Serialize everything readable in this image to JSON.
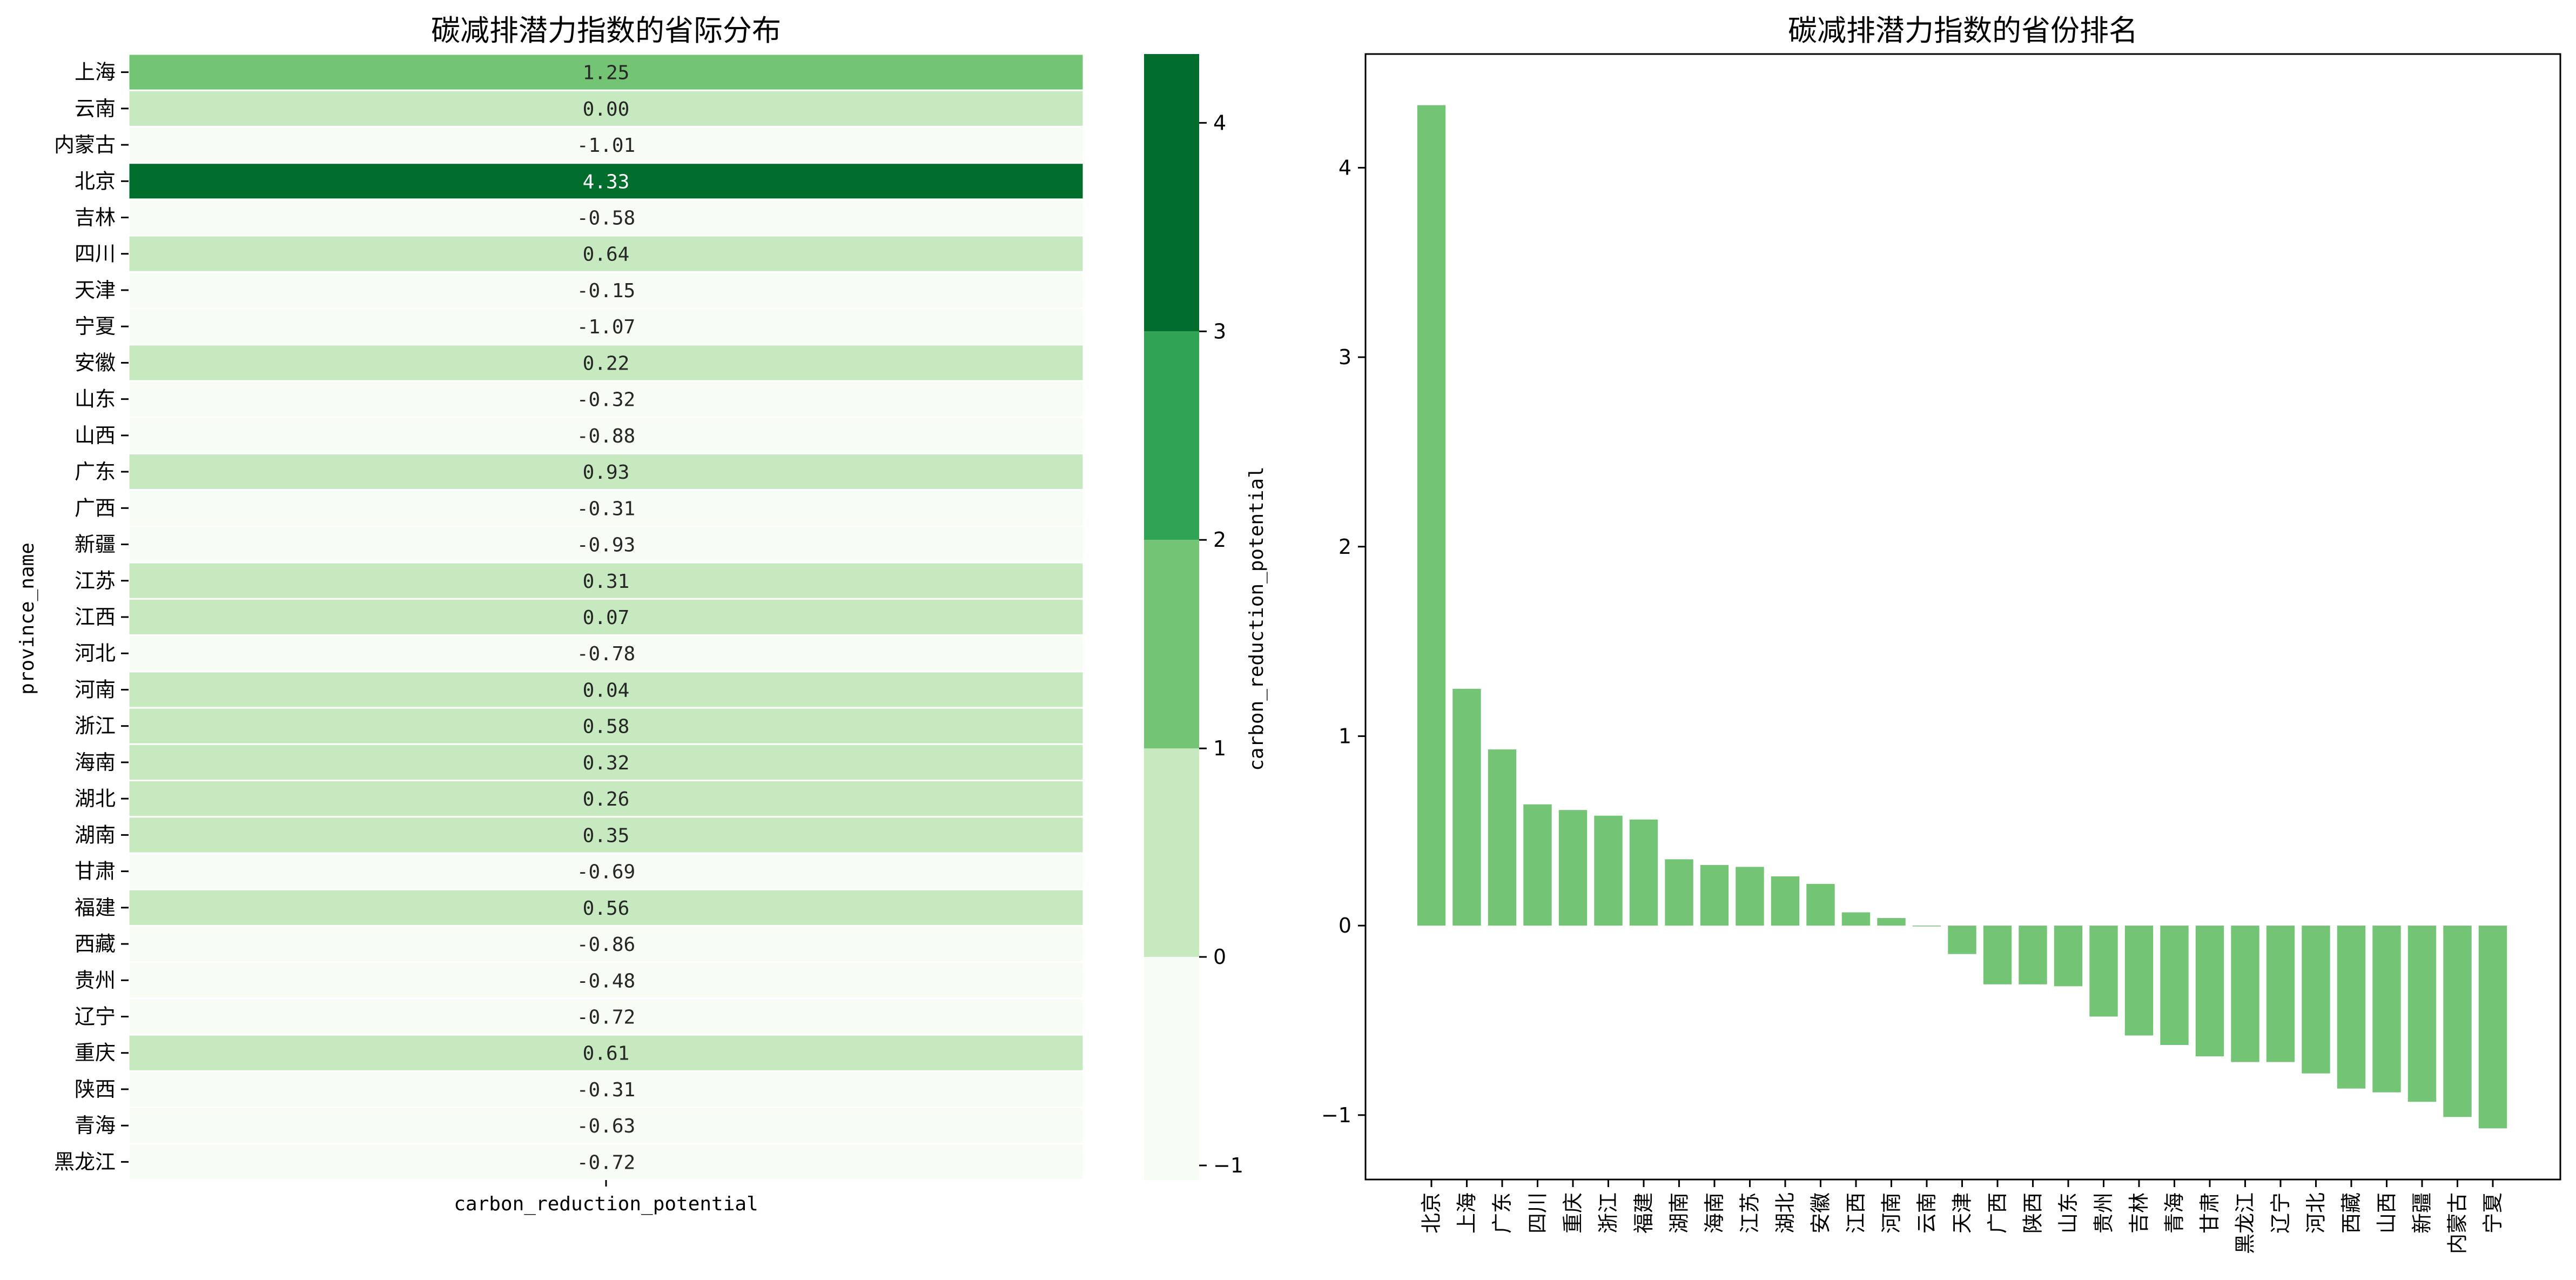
{
  "colors": {
    "bin_low": "#f7fcf5",
    "bin_0_1": "#c7e9c0",
    "bin_1_2": "#74c476",
    "bin_2_3": "#31a354",
    "bin_3_max": "#006d2c",
    "bar": "#74c476",
    "text_dark": "#262626",
    "text_light": "#ffffff"
  },
  "chart_data": [
    {
      "type": "heatmap",
      "title": "碳减排潜力指数的省际分布",
      "xlabel": "carbon_reduction_potential",
      "ylabel": "province_name",
      "x_tick_labels": [
        "carbon_reduction_potential"
      ],
      "rows": [
        "上海",
        "云南",
        "内蒙古",
        "北京",
        "吉林",
        "四川",
        "天津",
        "宁夏",
        "安徽",
        "山东",
        "山西",
        "广东",
        "广西",
        "新疆",
        "江苏",
        "江西",
        "河北",
        "河南",
        "浙江",
        "海南",
        "湖北",
        "湖南",
        "甘肃",
        "福建",
        "西藏",
        "贵州",
        "辽宁",
        "重庆",
        "陕西",
        "青海",
        "黑龙江"
      ],
      "values": [
        1.25,
        0.0,
        -1.01,
        4.33,
        -0.58,
        0.64,
        -0.15,
        -1.07,
        0.22,
        -0.32,
        -0.88,
        0.93,
        -0.31,
        -0.93,
        0.31,
        0.07,
        -0.78,
        0.04,
        0.58,
        0.32,
        0.26,
        0.35,
        -0.69,
        0.56,
        -0.86,
        -0.48,
        -0.72,
        0.61,
        -0.31,
        -0.63,
        -0.72
      ],
      "value_labels": [
        "1.25",
        "0.00",
        "-1.01",
        "4.33",
        "-0.58",
        "0.64",
        "-0.15",
        "-1.07",
        "0.22",
        "-0.32",
        "-0.88",
        "0.93",
        "-0.31",
        "-0.93",
        "0.31",
        "0.07",
        "-0.78",
        "0.04",
        "0.58",
        "0.32",
        "0.26",
        "0.35",
        "-0.69",
        "0.56",
        "-0.86",
        "-0.48",
        "-0.72",
        "0.61",
        "-0.31",
        "-0.63",
        "-0.72"
      ],
      "colorbar": {
        "label": "carbon_reduction_potential",
        "vmin": -1.07,
        "vmax": 4.33,
        "boundaries": [
          -1.07,
          0,
          1,
          2,
          3,
          4.33
        ],
        "ticks": [
          -1,
          0,
          1,
          2,
          3,
          4
        ],
        "tick_labels": [
          "−1",
          "0",
          "1",
          "2",
          "3",
          "4"
        ]
      }
    },
    {
      "type": "bar",
      "title": "碳减排潜力指数的省份排名",
      "xlabel": "",
      "ylabel": "",
      "categories": [
        "北京",
        "上海",
        "广东",
        "四川",
        "重庆",
        "浙江",
        "福建",
        "湖南",
        "海南",
        "江苏",
        "湖北",
        "安徽",
        "江西",
        "河南",
        "云南",
        "天津",
        "广西",
        "陕西",
        "山东",
        "贵州",
        "吉林",
        "青海",
        "甘肃",
        "黑龙江",
        "辽宁",
        "河北",
        "西藏",
        "山西",
        "新疆",
        "内蒙古",
        "宁夏"
      ],
      "values": [
        4.33,
        1.25,
        0.93,
        0.64,
        0.61,
        0.58,
        0.56,
        0.35,
        0.32,
        0.31,
        0.26,
        0.22,
        0.07,
        0.04,
        0.0,
        -0.15,
        -0.31,
        -0.31,
        -0.32,
        -0.48,
        -0.58,
        -0.63,
        -0.69,
        -0.72,
        -0.72,
        -0.78,
        -0.86,
        -0.88,
        -0.93,
        -1.01,
        -1.07
      ],
      "ylim": [
        -1.34,
        4.6
      ],
      "y_ticks": [
        -1,
        0,
        1,
        2,
        3,
        4
      ],
      "y_tick_labels": [
        "−1",
        "0",
        "1",
        "2",
        "3",
        "4"
      ]
    }
  ]
}
